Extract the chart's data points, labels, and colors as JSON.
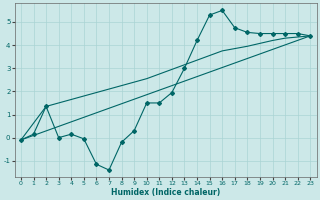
{
  "xlabel": "Humidex (Indice chaleur)",
  "bg_color": "#cce8e8",
  "line_color": "#006666",
  "grid_color": "#aad4d4",
  "xlim": [
    -0.5,
    23.5
  ],
  "ylim": [
    -1.7,
    5.8
  ],
  "xticks": [
    0,
    1,
    2,
    3,
    4,
    5,
    6,
    7,
    8,
    9,
    10,
    11,
    12,
    13,
    14,
    15,
    16,
    17,
    18,
    19,
    20,
    21,
    22,
    23
  ],
  "yticks": [
    -1,
    0,
    1,
    2,
    3,
    4,
    5
  ],
  "line1_x": [
    0,
    1,
    2,
    3,
    4,
    5,
    6,
    7,
    8,
    9,
    10,
    11,
    12,
    13,
    14,
    15,
    16,
    17,
    18,
    19,
    20,
    21,
    22,
    23
  ],
  "line1_y": [
    -0.1,
    0.15,
    1.35,
    0.0,
    0.15,
    -0.05,
    -1.15,
    -1.4,
    -0.2,
    0.3,
    1.5,
    1.5,
    1.95,
    3.0,
    4.2,
    5.3,
    5.5,
    4.75,
    4.55,
    4.5,
    4.5,
    4.5,
    4.5,
    4.4
  ],
  "line2_x": [
    0,
    23
  ],
  "line2_y": [
    -0.1,
    4.4
  ],
  "line3_x": [
    0,
    2,
    10,
    14,
    16,
    18,
    20,
    21,
    22,
    23
  ],
  "line3_y": [
    -0.1,
    1.35,
    2.55,
    3.35,
    3.75,
    3.95,
    4.2,
    4.3,
    4.35,
    4.4
  ]
}
